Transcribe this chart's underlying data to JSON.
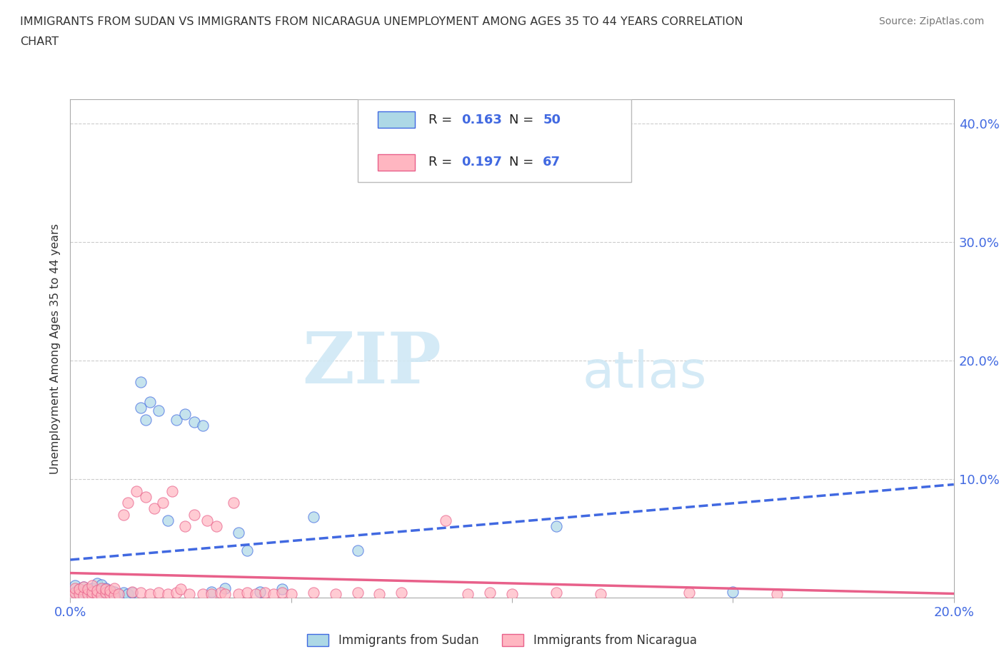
{
  "title_line1": "IMMIGRANTS FROM SUDAN VS IMMIGRANTS FROM NICARAGUA UNEMPLOYMENT AMONG AGES 35 TO 44 YEARS CORRELATION",
  "title_line2": "CHART",
  "source": "Source: ZipAtlas.com",
  "ylabel": "Unemployment Among Ages 35 to 44 years",
  "xlim": [
    0.0,
    0.2
  ],
  "ylim": [
    0.0,
    0.42
  ],
  "sudan_color": "#ADD8E6",
  "nicaragua_color": "#FFB6C1",
  "sudan_line_color": "#4169E1",
  "nicaragua_line_color": "#E8608A",
  "R_sudan": 0.163,
  "N_sudan": 50,
  "R_nicaragua": 0.197,
  "N_nicaragua": 67,
  "legend_label_sudan": "Immigrants from Sudan",
  "legend_label_nicaragua": "Immigrants from Nicaragua",
  "watermark_zip": "ZIP",
  "watermark_atlas": "atlas",
  "grid_color": "#CCCCCC",
  "bg_color": "#FFFFFF",
  "sudan_x": [
    0.0,
    0.001,
    0.001,
    0.002,
    0.002,
    0.003,
    0.003,
    0.003,
    0.004,
    0.004,
    0.005,
    0.005,
    0.005,
    0.006,
    0.006,
    0.006,
    0.007,
    0.007,
    0.007,
    0.008,
    0.008,
    0.008,
    0.009,
    0.009,
    0.01,
    0.01,
    0.011,
    0.012,
    0.013,
    0.014,
    0.016,
    0.016,
    0.017,
    0.018,
    0.02,
    0.022,
    0.024,
    0.026,
    0.028,
    0.03,
    0.032,
    0.035,
    0.038,
    0.04,
    0.043,
    0.048,
    0.055,
    0.065,
    0.11,
    0.15
  ],
  "sudan_y": [
    0.0,
    0.005,
    0.01,
    0.003,
    0.007,
    0.002,
    0.005,
    0.009,
    0.003,
    0.006,
    0.001,
    0.004,
    0.008,
    0.002,
    0.006,
    0.012,
    0.003,
    0.007,
    0.011,
    0.002,
    0.005,
    0.008,
    0.003,
    0.006,
    0.002,
    0.005,
    0.003,
    0.004,
    0.003,
    0.004,
    0.182,
    0.16,
    0.15,
    0.165,
    0.158,
    0.065,
    0.15,
    0.155,
    0.148,
    0.145,
    0.005,
    0.008,
    0.055,
    0.04,
    0.005,
    0.007,
    0.068,
    0.04,
    0.06,
    0.005
  ],
  "nicaragua_x": [
    0.0,
    0.001,
    0.001,
    0.002,
    0.002,
    0.003,
    0.003,
    0.004,
    0.004,
    0.005,
    0.005,
    0.005,
    0.006,
    0.006,
    0.007,
    0.007,
    0.008,
    0.008,
    0.009,
    0.009,
    0.01,
    0.01,
    0.011,
    0.012,
    0.013,
    0.014,
    0.015,
    0.016,
    0.017,
    0.018,
    0.019,
    0.02,
    0.021,
    0.022,
    0.023,
    0.024,
    0.025,
    0.026,
    0.027,
    0.028,
    0.03,
    0.031,
    0.032,
    0.033,
    0.034,
    0.035,
    0.037,
    0.038,
    0.04,
    0.042,
    0.044,
    0.046,
    0.048,
    0.05,
    0.055,
    0.06,
    0.065,
    0.07,
    0.075,
    0.085,
    0.09,
    0.095,
    0.1,
    0.11,
    0.12,
    0.14,
    0.16
  ],
  "nicaragua_y": [
    0.001,
    0.004,
    0.008,
    0.003,
    0.007,
    0.002,
    0.009,
    0.003,
    0.007,
    0.002,
    0.005,
    0.01,
    0.003,
    0.006,
    0.002,
    0.008,
    0.004,
    0.007,
    0.003,
    0.006,
    0.002,
    0.008,
    0.003,
    0.07,
    0.08,
    0.005,
    0.09,
    0.004,
    0.085,
    0.003,
    0.075,
    0.004,
    0.08,
    0.003,
    0.09,
    0.004,
    0.007,
    0.06,
    0.003,
    0.07,
    0.003,
    0.065,
    0.003,
    0.06,
    0.004,
    0.003,
    0.08,
    0.003,
    0.004,
    0.003,
    0.004,
    0.003,
    0.004,
    0.003,
    0.004,
    0.003,
    0.004,
    0.003,
    0.004,
    0.065,
    0.003,
    0.004,
    0.003,
    0.004,
    0.003,
    0.004,
    0.003
  ]
}
